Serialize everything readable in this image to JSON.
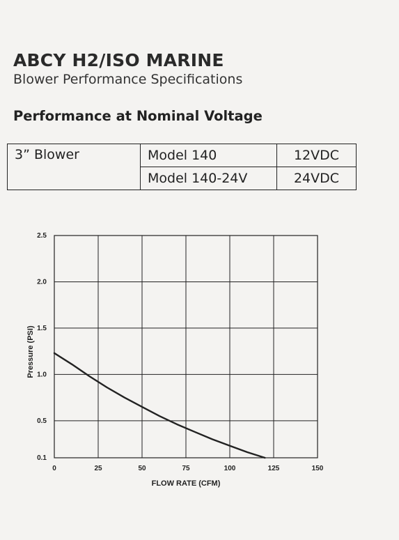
{
  "header": {
    "title": "ABCY H2/ISO MARINE",
    "subtitle": "Blower Performance Specifications",
    "section": "Performance at Nominal Voltage"
  },
  "spec_table": {
    "product": "3” Blower",
    "rows": [
      {
        "model": "Model 140",
        "voltage": "12VDC"
      },
      {
        "model": "Model 140-24V",
        "voltage": "24VDC"
      }
    ]
  },
  "chart_data": {
    "type": "line",
    "title": "",
    "xlabel": "FLOW RATE (CFM)",
    "ylabel": "Pressure (PSI)",
    "xlim": [
      0,
      150
    ],
    "ylim": [
      0.1,
      2.5
    ],
    "x_ticks": [
      "0",
      "25",
      "50",
      "75",
      "100",
      "125",
      "150"
    ],
    "y_ticks": [
      "0.1",
      "0.5",
      "1.0",
      "1.5",
      "2.0",
      "2.5"
    ],
    "grid": true,
    "series": [
      {
        "color": "#222222",
        "x": [
          0,
          10,
          20,
          30,
          40,
          50,
          60,
          70,
          80,
          90,
          100,
          110,
          120
        ],
        "y": [
          1.23,
          1.11,
          0.98,
          0.86,
          0.75,
          0.65,
          0.55,
          0.46,
          0.38,
          0.3,
          0.23,
          0.16,
          0.1
        ]
      }
    ]
  }
}
